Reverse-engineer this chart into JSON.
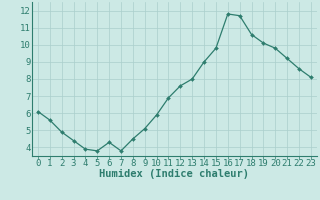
{
  "x": [
    0,
    1,
    2,
    3,
    4,
    5,
    6,
    7,
    8,
    9,
    10,
    11,
    12,
    13,
    14,
    15,
    16,
    17,
    18,
    19,
    20,
    21,
    22,
    23
  ],
  "y": [
    6.1,
    5.6,
    4.9,
    4.4,
    3.9,
    3.8,
    4.3,
    3.8,
    4.5,
    5.1,
    5.9,
    6.9,
    7.6,
    8.0,
    9.0,
    9.8,
    11.8,
    11.7,
    10.6,
    10.1,
    9.8,
    9.2,
    8.6,
    8.1
  ],
  "line_color": "#2e7d6e",
  "marker": "D",
  "marker_size": 2.0,
  "bg_color": "#cce9e5",
  "grid_color": "#aacfcc",
  "xlabel": "Humidex (Indice chaleur)",
  "xlabel_fontsize": 7.5,
  "tick_fontsize": 6.5,
  "ylim": [
    3.5,
    12.5
  ],
  "xlim": [
    -0.5,
    23.5
  ],
  "yticks": [
    4,
    5,
    6,
    7,
    8,
    9,
    10,
    11,
    12
  ],
  "xticks": [
    0,
    1,
    2,
    3,
    4,
    5,
    6,
    7,
    8,
    9,
    10,
    11,
    12,
    13,
    14,
    15,
    16,
    17,
    18,
    19,
    20,
    21,
    22,
    23
  ],
  "xtick_labels": [
    "0",
    "1",
    "2",
    "3",
    "4",
    "5",
    "6",
    "7",
    "8",
    "9",
    "10",
    "11",
    "12",
    "13",
    "14",
    "15",
    "16",
    "17",
    "18",
    "19",
    "20",
    "21",
    "22",
    "23"
  ]
}
